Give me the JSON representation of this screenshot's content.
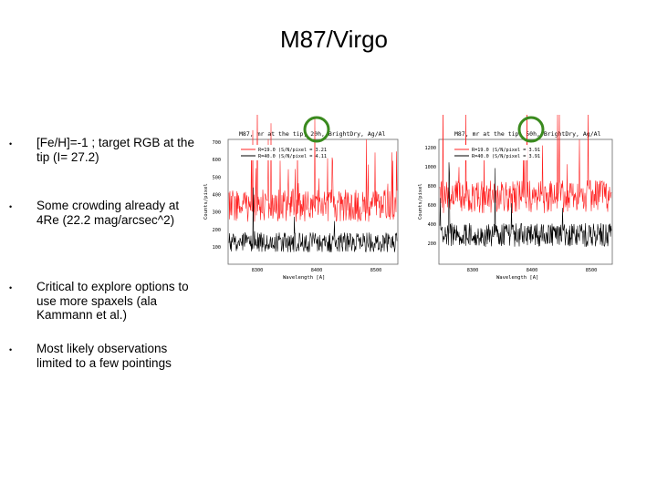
{
  "slide": {
    "title": "M87/Virgo",
    "bullets": [
      {
        "symbol": "•",
        "text": "[Fe/H]=-1 ; target RGB at the tip  (I= 27.2)"
      },
      {
        "symbol": "•",
        "text": "Some crowding already at 4Re (22.2 mag/arcsec^2)"
      },
      {
        "symbol": "•",
        "text": "Critical to explore options to use more spaxels (ala Kammann et al.)"
      },
      {
        "symbol": "•",
        "text": "Most likely observations limited to a few pointings"
      }
    ]
  },
  "plots": [
    {
      "header": "M87, mr at the tip, 20h, BrightDry, Ag/Al",
      "legend": [
        "R=19.0 (S/N/pixel = 3.21",
        "R=40.0 (S/N/pixel = 4.11"
      ],
      "ylabel": "Counts/pixel",
      "xlabel": "Wavelength [A]",
      "yticks": [
        "700",
        "600",
        "500",
        "400",
        "300",
        "200",
        "100"
      ],
      "xticks": [
        "8300",
        "8400",
        "8500"
      ],
      "colors": {
        "high_series": "#ff2020",
        "low_series": "#000000",
        "highlight": "#3a8a1e"
      }
    },
    {
      "header": "M87, mr at the tip, 50h, BrightDry, Ag/Al",
      "legend": [
        "R=19.0 (S/N/pixel = 3.91",
        "R=40.0 (S/N/pixel = 3.91"
      ],
      "ylabel": "Counts/pixel",
      "xlabel": "Wavelength [A]",
      "yticks": [
        "1200",
        "1000",
        "800",
        "600",
        "400",
        "200"
      ],
      "xticks": [
        "8300",
        "8400",
        "8500"
      ],
      "colors": {
        "high_series": "#ff2020",
        "low_series": "#000000",
        "highlight": "#3a8a1e"
      }
    }
  ]
}
